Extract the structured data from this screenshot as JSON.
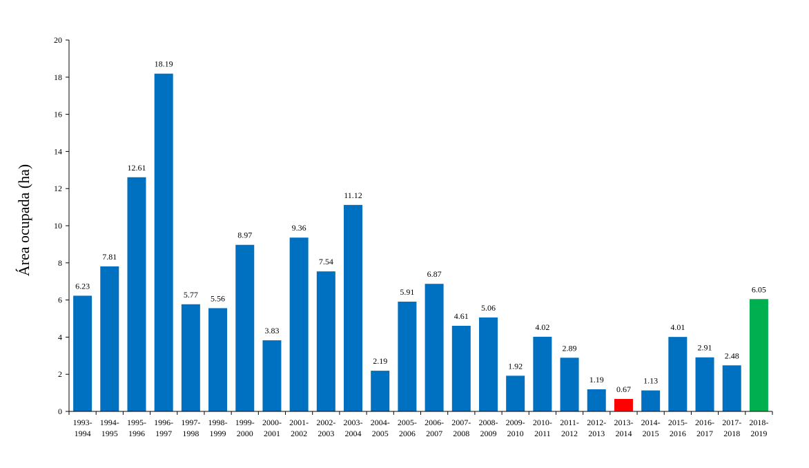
{
  "chart_data": {
    "type": "bar",
    "title": "",
    "xlabel": "",
    "ylabel": "Área ocupada (ha)",
    "ylim": [
      0,
      20
    ],
    "yticks": [
      0,
      2,
      4,
      6,
      8,
      10,
      12,
      14,
      16,
      18,
      20
    ],
    "grid": false,
    "categories": [
      [
        "1993-",
        "1994"
      ],
      [
        "1994-",
        "1995"
      ],
      [
        "1995-",
        "1996"
      ],
      [
        "1996-",
        "1997"
      ],
      [
        "1997-",
        "1998"
      ],
      [
        "1998-",
        "1999"
      ],
      [
        "1999-",
        "2000"
      ],
      [
        "2000-",
        "2001"
      ],
      [
        "2001-",
        "2002"
      ],
      [
        "2002-",
        "2003"
      ],
      [
        "2003-",
        "2004"
      ],
      [
        "2004-",
        "2005"
      ],
      [
        "2005-",
        "2006"
      ],
      [
        "2006-",
        "2007"
      ],
      [
        "2007-",
        "2008"
      ],
      [
        "2008-",
        "2009"
      ],
      [
        "2009-",
        "2010"
      ],
      [
        "2010-",
        "2011"
      ],
      [
        "2011-",
        "2012"
      ],
      [
        "2012-",
        "2013"
      ],
      [
        "2013-",
        "2014"
      ],
      [
        "2014-",
        "2015"
      ],
      [
        "2015-",
        "2016"
      ],
      [
        "2016-",
        "2017"
      ],
      [
        "2017-",
        "2018"
      ],
      [
        "2018-",
        "2019"
      ]
    ],
    "values": [
      6.23,
      7.81,
      12.61,
      18.19,
      5.77,
      5.56,
      8.97,
      3.83,
      9.36,
      7.54,
      11.12,
      2.19,
      5.91,
      6.87,
      4.61,
      5.06,
      1.92,
      4.02,
      2.89,
      1.19,
      0.67,
      1.13,
      4.01,
      2.91,
      2.48,
      6.05
    ],
    "data_labels": [
      "6.23",
      "7.81",
      "12.61",
      "18.19",
      "5.77",
      "5.56",
      "8.97",
      "3.83",
      "9.36",
      "7.54",
      "11.12",
      "2.19",
      "5.91",
      "6.87",
      "4.61",
      "5.06",
      "1.92",
      "4.02",
      "2.89",
      "1.19",
      "0.67",
      "1.13",
      "4.01",
      "2.91",
      "2.48",
      "6.05"
    ],
    "bar_colors": [
      "#0070C0",
      "#0070C0",
      "#0070C0",
      "#0070C0",
      "#0070C0",
      "#0070C0",
      "#0070C0",
      "#0070C0",
      "#0070C0",
      "#0070C0",
      "#0070C0",
      "#0070C0",
      "#0070C0",
      "#0070C0",
      "#0070C0",
      "#0070C0",
      "#0070C0",
      "#0070C0",
      "#0070C0",
      "#0070C0",
      "#FF0000",
      "#0070C0",
      "#0070C0",
      "#0070C0",
      "#0070C0",
      "#00B050"
    ]
  }
}
